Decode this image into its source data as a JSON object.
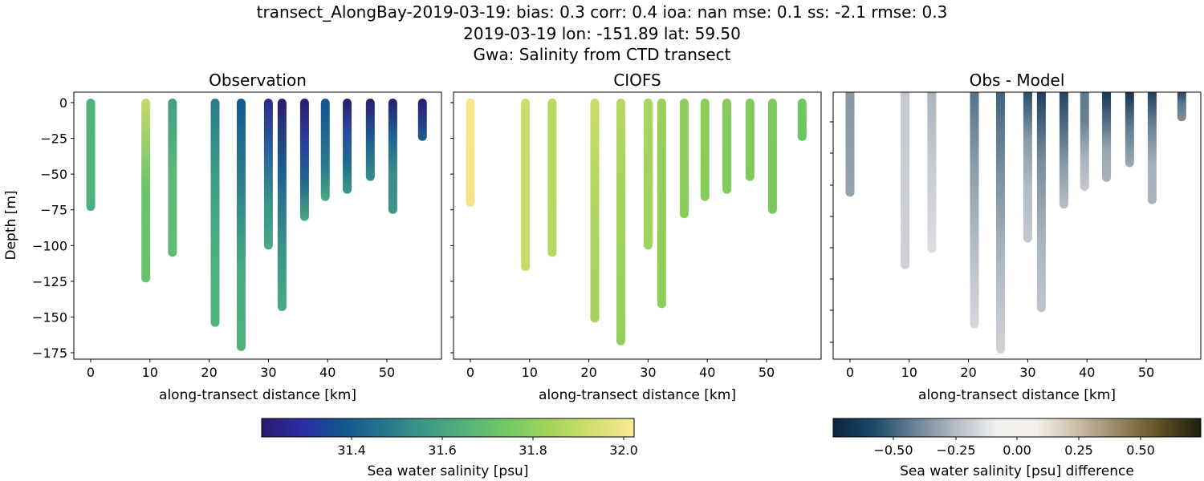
{
  "title_lines": [
    "transect_AlongBay-2019-03-19: bias: 0.3  corr: 0.4  ioa: nan  mse: 0.1  ss: -2.1  rmse: 0.3",
    "2019-03-19 lon: -151.89 lat: 59.50",
    "Gwa: Salinity from CTD transect"
  ],
  "chart_data": [
    {
      "type": "scatter",
      "title": "Observation",
      "xlabel": "along-transect distance [km]",
      "ylabel": "Depth [m]",
      "xticks": [
        "0",
        "10",
        "20",
        "30",
        "40",
        "50"
      ],
      "yticks": [
        "0",
        "−25",
        "−50",
        "−75",
        "−100",
        "−125",
        "−150",
        "−175"
      ],
      "xlim": [
        -2.7,
        59.4
      ],
      "ylim": [
        -180,
        7
      ],
      "stations": [
        {
          "x": 0,
          "depth": 73,
          "colors": [
            "#52b27c",
            "#4fb07f"
          ]
        },
        {
          "x": 9.3,
          "depth": 123,
          "colors": [
            "#c8d86a",
            "#68c46c",
            "#66c26e"
          ]
        },
        {
          "x": 13.8,
          "depth": 105,
          "colors": [
            "#3f9f86",
            "#5cba76",
            "#5fbc74"
          ]
        },
        {
          "x": 21,
          "depth": 154,
          "colors": [
            "#2a7a8a",
            "#3f9a86",
            "#4dae80",
            "#54b47c"
          ]
        },
        {
          "x": 25.4,
          "depth": 171,
          "colors": [
            "#13578f",
            "#2c7f8a",
            "#4aa984",
            "#52b27c"
          ]
        },
        {
          "x": 30,
          "depth": 100,
          "colors": [
            "#2d2a8a",
            "#2a5f9a",
            "#3a9088",
            "#4aa984"
          ]
        },
        {
          "x": 32.3,
          "depth": 143,
          "colors": [
            "#2b1c6e",
            "#1d5e90",
            "#3a8f89",
            "#4aab84"
          ]
        },
        {
          "x": 36.1,
          "depth": 80,
          "colors": [
            "#2b1c6e",
            "#2c3aa0",
            "#1d6690",
            "#48a882"
          ]
        },
        {
          "x": 39.6,
          "depth": 66,
          "colors": [
            "#12568f",
            "#1d6690",
            "#2a7a8b",
            "#4aaa84"
          ]
        },
        {
          "x": 43.3,
          "depth": 61,
          "colors": [
            "#2b1c6e",
            "#2a48a0",
            "#1f6b90",
            "#3d9986"
          ]
        },
        {
          "x": 47.2,
          "depth": 52,
          "colors": [
            "#2b1c6e",
            "#1d5e90",
            "#3a8e88"
          ]
        },
        {
          "x": 51,
          "depth": 75,
          "colors": [
            "#2b1c6e",
            "#1e6390",
            "#3a9088",
            "#3d9587"
          ]
        },
        {
          "x": 56,
          "depth": 24,
          "colors": [
            "#2b1c6e",
            "#1c5d91"
          ]
        }
      ]
    },
    {
      "type": "scatter",
      "title": "CIOFS",
      "xlabel": "along-transect distance [km]",
      "xticks": [
        "0",
        "10",
        "20",
        "30",
        "40",
        "50"
      ],
      "stations": [
        {
          "x": 0,
          "depth": 70,
          "colors": [
            "#f5e88d",
            "#f0e488"
          ]
        },
        {
          "x": 9.3,
          "depth": 115,
          "colors": [
            "#cddc6a",
            "#c8da68"
          ]
        },
        {
          "x": 13.8,
          "depth": 105,
          "colors": [
            "#bad862",
            "#b5d761"
          ]
        },
        {
          "x": 21,
          "depth": 151,
          "colors": [
            "#cadc68",
            "#b0d660",
            "#a2d35c"
          ]
        },
        {
          "x": 25.4,
          "depth": 167,
          "colors": [
            "#b8d862",
            "#9fd25b",
            "#92cf5a"
          ]
        },
        {
          "x": 30,
          "depth": 100,
          "colors": [
            "#a8d55e",
            "#a0d35c"
          ]
        },
        {
          "x": 32.3,
          "depth": 141,
          "colors": [
            "#98d05b",
            "#8ccd5a"
          ]
        },
        {
          "x": 36.1,
          "depth": 78,
          "colors": [
            "#8dce5b",
            "#88cd5b"
          ]
        },
        {
          "x": 39.6,
          "depth": 66,
          "colors": [
            "#89cd5b",
            "#86cc5b"
          ]
        },
        {
          "x": 43.3,
          "depth": 61,
          "colors": [
            "#87cc5b",
            "#84cb5c"
          ]
        },
        {
          "x": 47.2,
          "depth": 52,
          "colors": [
            "#83cb5c",
            "#80ca5c"
          ]
        },
        {
          "x": 51,
          "depth": 75,
          "colors": [
            "#7fc95d",
            "#7bc85e"
          ]
        },
        {
          "x": 56,
          "depth": 24,
          "colors": [
            "#70c663",
            "#6dc564"
          ]
        }
      ]
    },
    {
      "type": "scatter",
      "title": "Obs - Model",
      "xlabel": "along-transect distance [km]",
      "xticks": [
        "0",
        "10",
        "20",
        "30",
        "40",
        "50"
      ],
      "stations": [
        {
          "x": 0,
          "depth": 69,
          "colors": [
            "#8796a2",
            "#8e9ca7",
            "#96a2ac"
          ]
        },
        {
          "x": 9.3,
          "depth": 118,
          "colors": [
            "#c4c8ce",
            "#c9ccd1",
            "#cfd1d5"
          ]
        },
        {
          "x": 13.8,
          "depth": 107,
          "colors": [
            "#a8b2bb",
            "#c8ccd1",
            "#dcdde0"
          ]
        },
        {
          "x": 21,
          "depth": 158,
          "colors": [
            "#4f7089",
            "#8d9ca8",
            "#b5bcc4",
            "#d6d8dc"
          ]
        },
        {
          "x": 25.4,
          "depth": 175,
          "colors": [
            "#3a6180",
            "#7d909e",
            "#b0b8c1",
            "#d0d3d6"
          ]
        },
        {
          "x": 30,
          "depth": 100,
          "colors": [
            "#1c4566",
            "#8a9aa6",
            "#b4bbc3",
            "#c4c8ce"
          ]
        },
        {
          "x": 32.3,
          "depth": 147,
          "colors": [
            "#163a5c",
            "#7a8d9b",
            "#a9b2bb",
            "#c0c5cb"
          ]
        },
        {
          "x": 36.1,
          "depth": 77,
          "colors": [
            "#1c4262",
            "#4f6c82",
            "#8d9ca8",
            "#b8bfc6"
          ]
        },
        {
          "x": 39.6,
          "depth": 65,
          "colors": [
            "#5f7789",
            "#6a8090",
            "#a8b1ba",
            "#c4c8ce"
          ]
        },
        {
          "x": 43.3,
          "depth": 59,
          "colors": [
            "#0e2e4d",
            "#4c687e",
            "#9aa7b2",
            "#a9b2bb"
          ]
        },
        {
          "x": 47.2,
          "depth": 49,
          "colors": [
            "#0d2847",
            "#607b8e",
            "#9eaab4"
          ]
        },
        {
          "x": 51,
          "depth": 74,
          "colors": [
            "#12365a",
            "#6d8394",
            "#a7b1bb",
            "#aab3bc"
          ]
        },
        {
          "x": 56,
          "depth": 18,
          "colors": [
            "#10304f",
            "#5c788c",
            "#7f8e9a"
          ]
        }
      ]
    }
  ],
  "colorbars": [
    {
      "label": "Sea water salinity [psu]",
      "ticks": [
        "31.4",
        "31.6",
        "31.8",
        "32.0"
      ],
      "range": [
        31.2,
        32.02
      ],
      "colormap": [
        "#2a1a6e",
        "#2a2ea3",
        "#13578f",
        "#24788c",
        "#3f9a86",
        "#55b57b",
        "#77c964",
        "#a4d55a",
        "#d2df6f",
        "#f8ea93"
      ]
    },
    {
      "label": "Sea water salinity [psu] difference",
      "ticks": [
        "−0.50",
        "−0.25",
        "0.00",
        "0.25",
        "0.50"
      ],
      "range": [
        -0.74,
        0.74
      ],
      "colormap": [
        "#0c2340",
        "#1a4a6a",
        "#6a8294",
        "#b5bcc5",
        "#f1f0ef",
        "#f3efe9",
        "#c8bca4",
        "#958661",
        "#5f5024",
        "#1e1e0f"
      ]
    }
  ]
}
